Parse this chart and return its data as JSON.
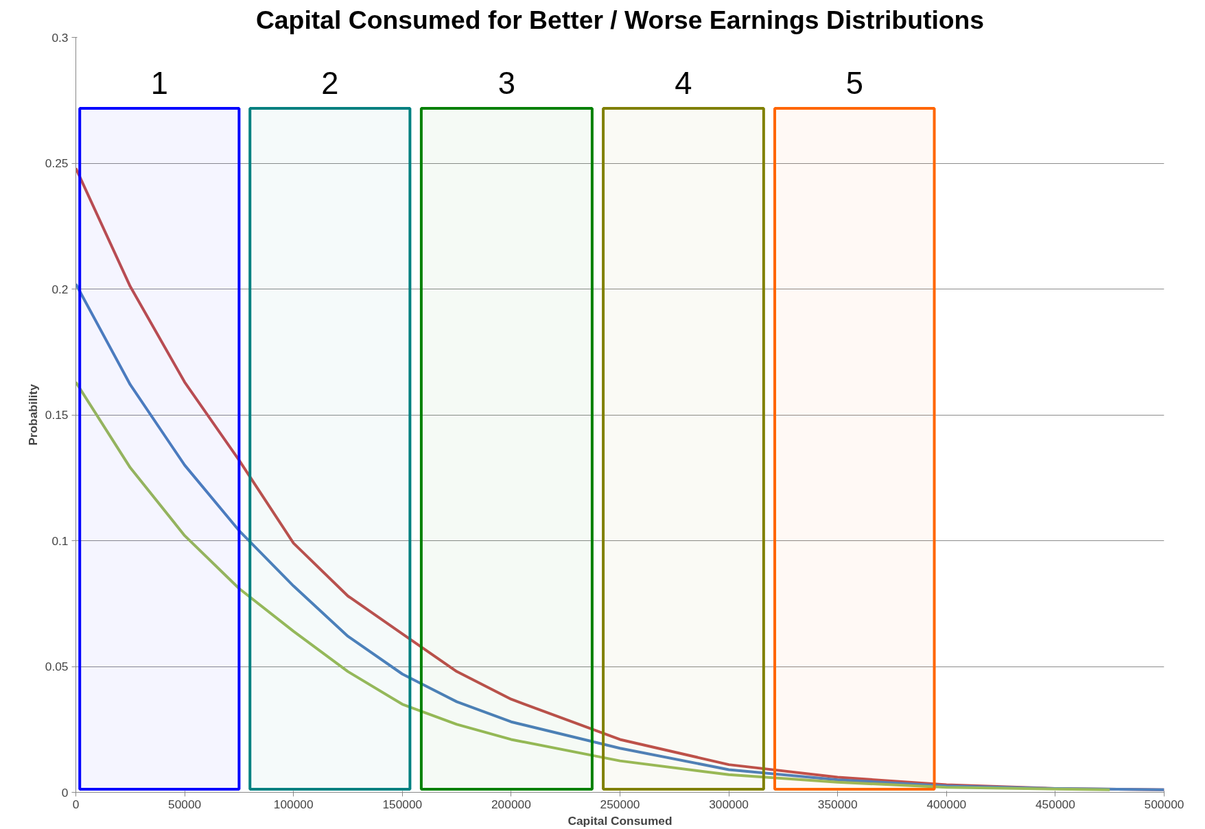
{
  "chart_data": {
    "type": "line",
    "title": "Capital Consumed for Better / Worse Earnings Distributions",
    "xlabel": "Capital Consumed",
    "ylabel": "Probability",
    "xlim": [
      0,
      500000
    ],
    "xticks": [
      0,
      50000,
      100000,
      150000,
      200000,
      250000,
      300000,
      350000,
      400000,
      450000,
      500000
    ],
    "ylim": [
      0,
      0.3
    ],
    "yticks": [
      0,
      0.05,
      0.1,
      0.15,
      0.2,
      0.25,
      0.3
    ],
    "grid": "y",
    "marker": "none",
    "line_style": "solid",
    "series": [
      {
        "color": "#c0504d",
        "x": [
          0,
          25000,
          50000,
          75000,
          100000,
          125000,
          150000,
          175000,
          200000,
          250000,
          300000,
          350000,
          400000,
          450000,
          500000
        ],
        "values": [
          0.248,
          0.201,
          0.163,
          0.132,
          0.099,
          0.078,
          0.063,
          0.048,
          0.037,
          0.021,
          0.011,
          0.006,
          0.003,
          0.0015,
          0.001
        ]
      },
      {
        "color": "#4f81bd",
        "x": [
          0,
          25000,
          50000,
          75000,
          100000,
          125000,
          150000,
          175000,
          200000,
          250000,
          300000,
          350000,
          400000,
          450000,
          500000
        ],
        "values": [
          0.202,
          0.162,
          0.13,
          0.104,
          0.082,
          0.062,
          0.047,
          0.036,
          0.028,
          0.0175,
          0.009,
          0.005,
          0.0025,
          0.0015,
          0.001
        ]
      },
      {
        "color": "#9bbb59",
        "x": [
          0,
          25000,
          50000,
          75000,
          100000,
          125000,
          150000,
          175000,
          200000,
          250000,
          300000,
          350000,
          400000,
          475000
        ],
        "values": [
          0.163,
          0.129,
          0.102,
          0.081,
          0.064,
          0.048,
          0.035,
          0.027,
          0.021,
          0.0125,
          0.007,
          0.004,
          0.002,
          0.001
        ]
      }
    ],
    "bands": [
      {
        "axis": "x",
        "from": 1800,
        "to": 75000,
        "label": "1",
        "color": "#0000ff"
      },
      {
        "axis": "x",
        "from": 80000,
        "to": 153500,
        "label": "2",
        "color": "#008080"
      },
      {
        "axis": "x",
        "from": 158700,
        "to": 237200,
        "label": "3",
        "color": "#008000"
      },
      {
        "axis": "x",
        "from": 242300,
        "to": 316000,
        "label": "4",
        "color": "#808000"
      },
      {
        "axis": "x",
        "from": 321100,
        "to": 394400,
        "label": "5",
        "color": "#ff6600"
      }
    ]
  }
}
